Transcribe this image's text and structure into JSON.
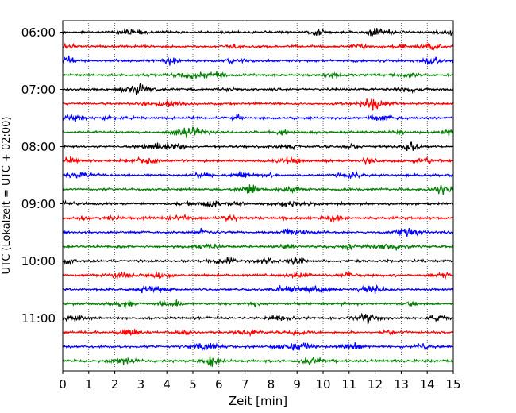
{
  "chart_data": {
    "type": "line",
    "title": "",
    "xlabel": "Zeit  [min]",
    "ylabel": "UTC (Lokalzeit = UTC + 02:00)",
    "x_ticks": [
      "0",
      "1",
      "2",
      "3",
      "4",
      "5",
      "6",
      "7",
      "8",
      "9",
      "10",
      "11",
      "12",
      "13",
      "14",
      "15"
    ],
    "xlim": [
      0,
      15
    ],
    "y_tick_labels": [
      "06:00",
      "07:00",
      "08:00",
      "09:00",
      "10:00",
      "11:00"
    ],
    "grid": "vertical dotted at each minute",
    "trace_start_utc": "06:00",
    "trace_interval_min": 15,
    "trace_count": 24,
    "colors": [
      "#000000",
      "#ff0000",
      "#0000ff",
      "#007f00"
    ]
  }
}
